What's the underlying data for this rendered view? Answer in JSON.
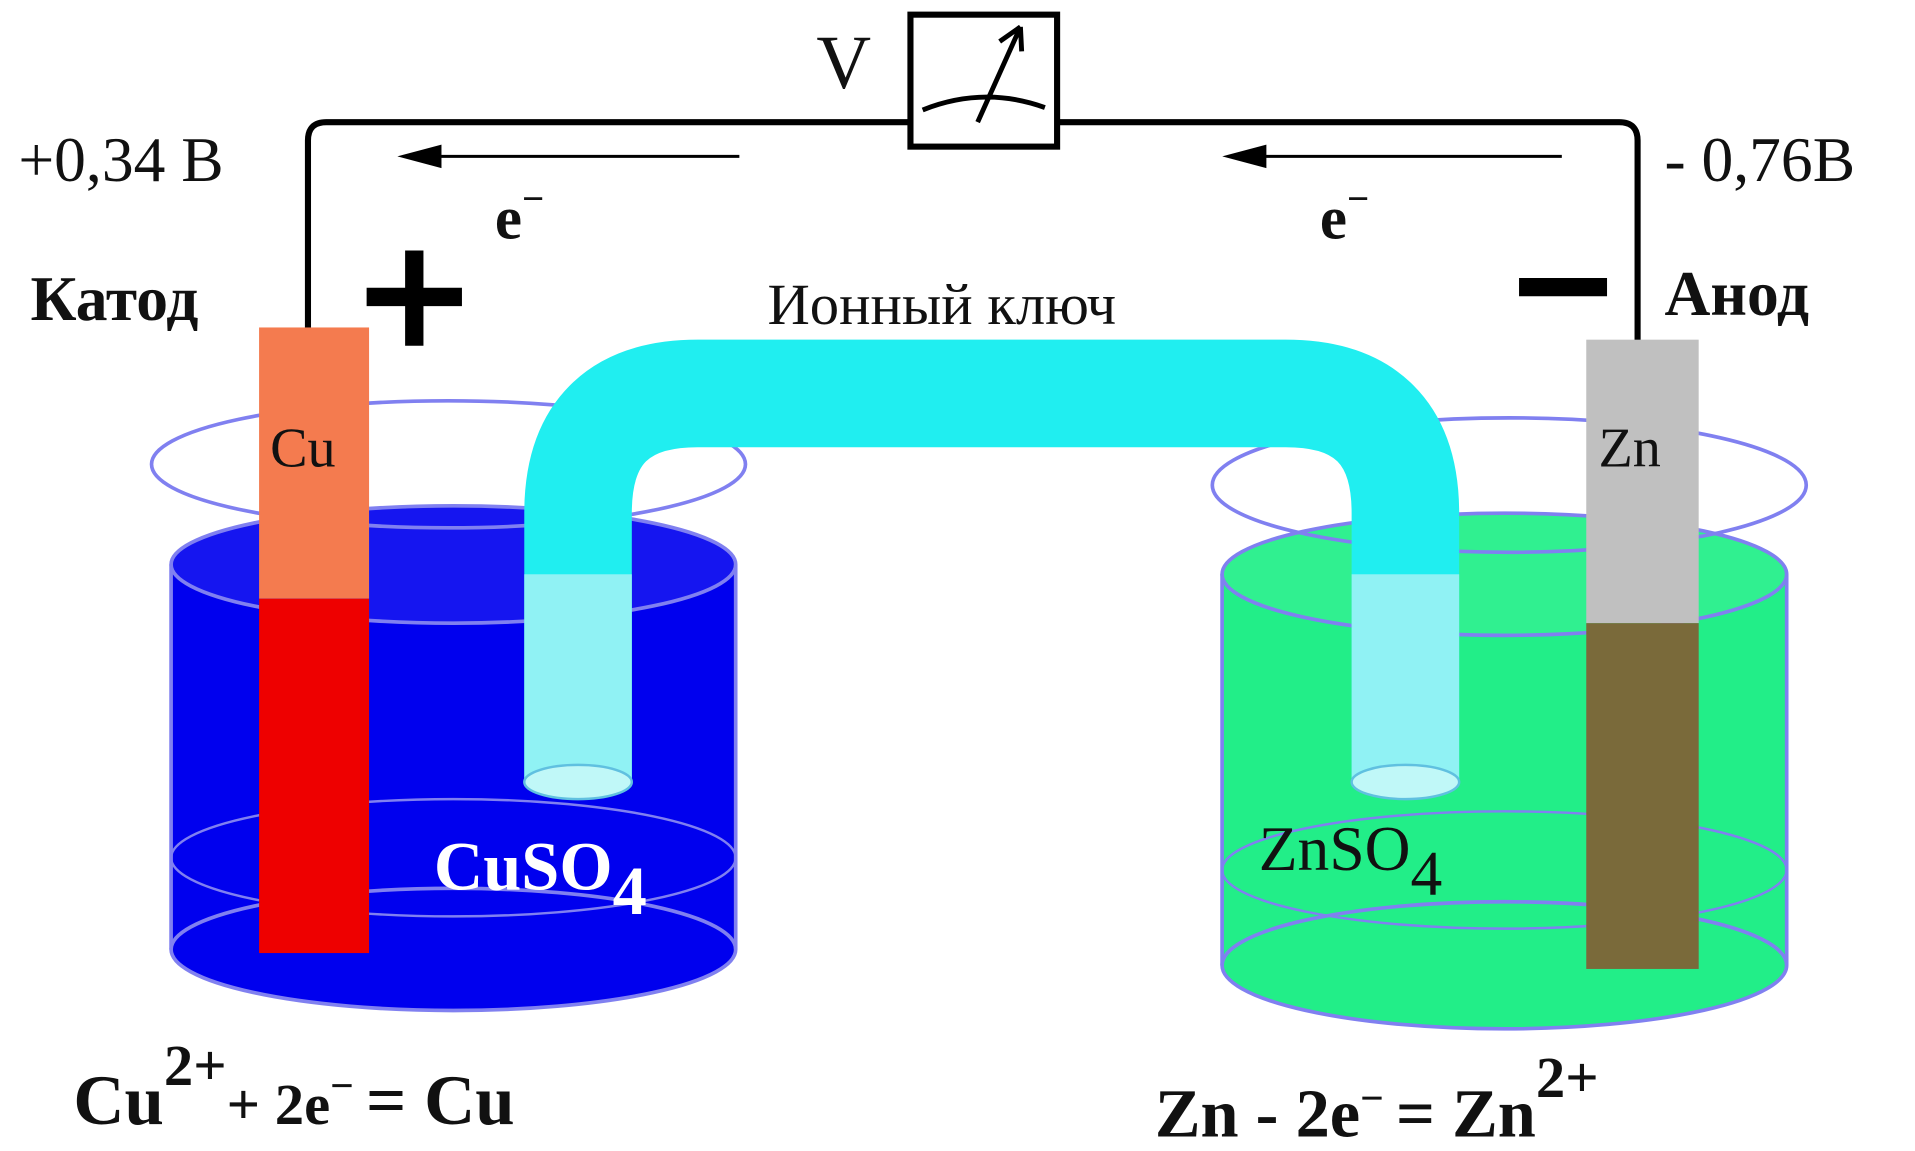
{
  "voltmeter": {
    "label": "V"
  },
  "salt_bridge": {
    "label": "Ионный ключ"
  },
  "cathode": {
    "potential": "+0,34 В",
    "name": "Катод",
    "electrode": "Cu",
    "electron": {
      "symbol": "e",
      "charge": "−"
    },
    "solution": {
      "formula": "CuSO",
      "subscript": "4"
    },
    "reaction": {
      "parts": [
        "Cu",
        "2+",
        "+ 2e",
        "−",
        "=  Cu"
      ]
    }
  },
  "anode": {
    "potential": "- 0,76В",
    "name": "Анод",
    "electrode": "Zn",
    "electron": {
      "symbol": "e",
      "charge": "−"
    },
    "solution": {
      "formula": "ZnSO",
      "subscript": "4"
    },
    "reaction": {
      "parts": [
        "Zn - 2e",
        "−",
        "=  Zn",
        "2+"
      ]
    }
  }
}
